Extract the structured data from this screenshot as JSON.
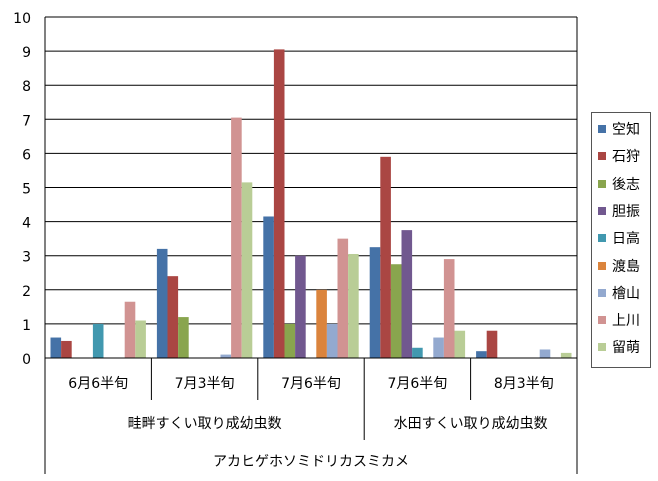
{
  "chart_data": {
    "type": "bar",
    "categories": [
      "6月6半旬",
      "7月3半旬",
      "7月6半旬",
      "7月6半旬",
      "8月3半旬"
    ],
    "groups": [
      {
        "label": "畦畔すくい取り成幼虫数",
        "span": [
          0,
          2
        ]
      },
      {
        "label": "水田すくい取り成幼虫数",
        "span": [
          3,
          4
        ]
      }
    ],
    "super_label": "アカヒゲホソミドリカスミカメ",
    "ylim": [
      0,
      10
    ],
    "yticks": [
      "0",
      "1",
      "2",
      "3",
      "4",
      "5",
      "6",
      "7",
      "8",
      "9",
      "10"
    ],
    "grid": true,
    "legend_position": "right",
    "series": [
      {
        "name": "空知",
        "color": "#4572A7",
        "values": [
          0.6,
          3.2,
          4.15,
          3.25,
          0.2
        ]
      },
      {
        "name": "石狩",
        "color": "#AA4643",
        "values": [
          0.5,
          2.4,
          9.05,
          5.9,
          0.8
        ]
      },
      {
        "name": "後志",
        "color": "#89A54E",
        "values": [
          0,
          1.2,
          1.0,
          2.75,
          0
        ]
      },
      {
        "name": "胆振",
        "color": "#71588F",
        "values": [
          0,
          0,
          3.0,
          3.75,
          0
        ]
      },
      {
        "name": "日高",
        "color": "#4198AF",
        "values": [
          1.0,
          0,
          0,
          0.3,
          0
        ]
      },
      {
        "name": "渡島",
        "color": "#DB843D",
        "values": [
          0,
          0,
          2.0,
          0,
          0
        ]
      },
      {
        "name": "檜山",
        "color": "#93A9CF",
        "values": [
          0,
          0.1,
          1.0,
          0.6,
          0.25
        ]
      },
      {
        "name": "上川",
        "color": "#D19392",
        "values": [
          1.65,
          7.05,
          3.5,
          2.9,
          0
        ]
      },
      {
        "name": "留萌",
        "color": "#B9CD96",
        "values": [
          1.1,
          5.15,
          3.05,
          0.8,
          0.15
        ]
      }
    ]
  }
}
